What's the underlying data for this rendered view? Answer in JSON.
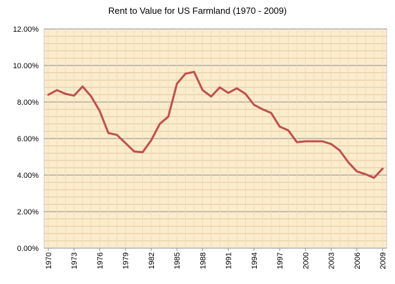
{
  "chart_data": {
    "type": "line",
    "title": "Rent to Value for US Farmland (1970 - 2009)",
    "xlabel": "",
    "ylabel": "",
    "ylim": [
      0,
      12
    ],
    "y_ticks": [
      "0.00%",
      "2.00%",
      "4.00%",
      "6.00%",
      "8.00%",
      "10.00%",
      "12.00%"
    ],
    "x_ticks": [
      "1970",
      "1973",
      "1976",
      "1979",
      "1982",
      "1985",
      "1988",
      "1991",
      "1994",
      "1997",
      "2000",
      "2003",
      "2006",
      "2009"
    ],
    "grid": true,
    "legend": "none",
    "line_color": "#c0504d",
    "plot_background": "#fbeccd",
    "x": [
      1970,
      1971,
      1972,
      1973,
      1974,
      1975,
      1976,
      1977,
      1978,
      1979,
      1980,
      1981,
      1982,
      1983,
      1984,
      1985,
      1986,
      1987,
      1988,
      1989,
      1990,
      1991,
      1992,
      1993,
      1994,
      1995,
      1996,
      1997,
      1998,
      1999,
      2000,
      2001,
      2002,
      2003,
      2004,
      2005,
      2006,
      2007,
      2008,
      2009
    ],
    "series": [
      {
        "values": [
          8.4,
          8.65,
          8.45,
          8.35,
          8.85,
          8.3,
          7.5,
          6.3,
          6.2,
          5.75,
          5.3,
          5.25,
          5.9,
          6.8,
          7.2,
          9.0,
          9.55,
          9.65,
          8.65,
          8.3,
          8.8,
          8.5,
          8.75,
          8.45,
          7.85,
          7.6,
          7.4,
          6.65,
          6.45,
          5.8,
          5.85,
          5.85,
          5.85,
          5.7,
          5.35,
          4.7,
          4.2,
          4.05,
          3.85,
          4.35
        ]
      }
    ]
  }
}
